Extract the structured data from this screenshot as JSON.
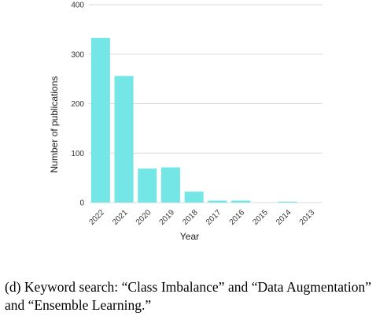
{
  "chart_data": {
    "type": "bar",
    "categories": [
      "2022",
      "2021",
      "2020",
      "2019",
      "2018",
      "2017",
      "2016",
      "2015",
      "2014",
      "2013"
    ],
    "values": [
      333,
      256,
      69,
      71,
      22,
      4,
      4,
      0,
      2,
      0
    ],
    "xlabel": "Year",
    "ylabel": "Number of publications",
    "ylim": [
      0,
      400
    ],
    "yticks": [
      0,
      100,
      200,
      300,
      400
    ],
    "grid": true,
    "bar_color": "#75E6E6",
    "grid_color": "#D9D9D9"
  },
  "caption": {
    "text": "(d) Keyword search: “Class Imbalance” and “Data Augmentation” and “Ensemble Learning.”"
  }
}
